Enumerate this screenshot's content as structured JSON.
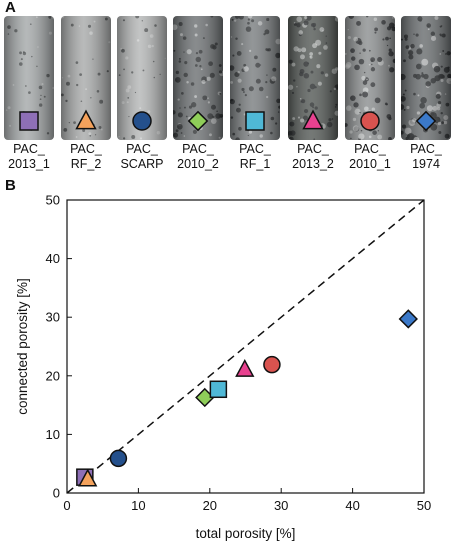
{
  "panel_a_label": "A",
  "panel_b_label": "B",
  "samples": [
    {
      "name": "PAC_\n2013_1",
      "marker": "square",
      "color": "#8e6fb6",
      "core_color": "#a5a9aa",
      "pore_density": 0.15
    },
    {
      "name": "PAC_\nRF_2",
      "marker": "triangle",
      "color": "#f4a25c",
      "core_color": "#a9abab",
      "pore_density": 0.2
    },
    {
      "name": "PAC_\nSCARP",
      "marker": "circle",
      "color": "#24508c",
      "core_color": "#b5b7b7",
      "pore_density": 0.18
    },
    {
      "name": "PAC_\n2010_2",
      "marker": "diamond",
      "color": "#8fce59",
      "core_color": "#6e7274",
      "pore_density": 0.6
    },
    {
      "name": "PAC_\nRF_1",
      "marker": "square",
      "color": "#4fb8d6",
      "core_color": "#7b7f81",
      "pore_density": 0.55
    },
    {
      "name": "PAC_\n2013_2",
      "marker": "triangle",
      "color": "#e8418f",
      "core_color": "#565b58",
      "pore_density": 0.65
    },
    {
      "name": "PAC_\n2010_1",
      "marker": "circle",
      "color": "#d9534f",
      "core_color": "#8d9091",
      "pore_density": 0.7
    },
    {
      "name": "PAC_\n1974",
      "marker": "diamond",
      "color": "#3b79c9",
      "core_color": "#6a6e70",
      "pore_density": 0.9
    }
  ],
  "chart_data": {
    "type": "scatter",
    "xlabel": "total porosity [%]",
    "ylabel": "connected porosity [%]",
    "xlim": [
      0,
      50
    ],
    "ylim": [
      0,
      50
    ],
    "xticks": [
      0,
      10,
      20,
      30,
      40,
      50
    ],
    "yticks": [
      0,
      10,
      20,
      30,
      40,
      50
    ],
    "grid": false,
    "reference_line": {
      "style": "dashed",
      "from": [
        0,
        0
      ],
      "to": [
        50,
        50
      ]
    },
    "points": [
      {
        "sample": "PAC_2013_1",
        "x": 2.5,
        "y": 2.7,
        "marker": "square",
        "color": "#8e6fb6"
      },
      {
        "sample": "PAC_RF_2",
        "x": 2.9,
        "y": 2.4,
        "marker": "triangle",
        "color": "#f4a25c"
      },
      {
        "sample": "PAC_SCARP",
        "x": 7.2,
        "y": 5.9,
        "marker": "circle",
        "color": "#24508c"
      },
      {
        "sample": "PAC_2010_2",
        "x": 19.3,
        "y": 16.3,
        "marker": "diamond",
        "color": "#8fce59"
      },
      {
        "sample": "PAC_RF_1",
        "x": 21.2,
        "y": 17.7,
        "marker": "square",
        "color": "#4fb8d6"
      },
      {
        "sample": "PAC_2013_2",
        "x": 24.9,
        "y": 21.1,
        "marker": "triangle",
        "color": "#e8418f"
      },
      {
        "sample": "PAC_2010_1",
        "x": 28.7,
        "y": 21.9,
        "marker": "circle",
        "color": "#d9534f"
      },
      {
        "sample": "PAC_1974",
        "x": 47.8,
        "y": 29.7,
        "marker": "diamond",
        "color": "#3b79c9"
      }
    ]
  }
}
